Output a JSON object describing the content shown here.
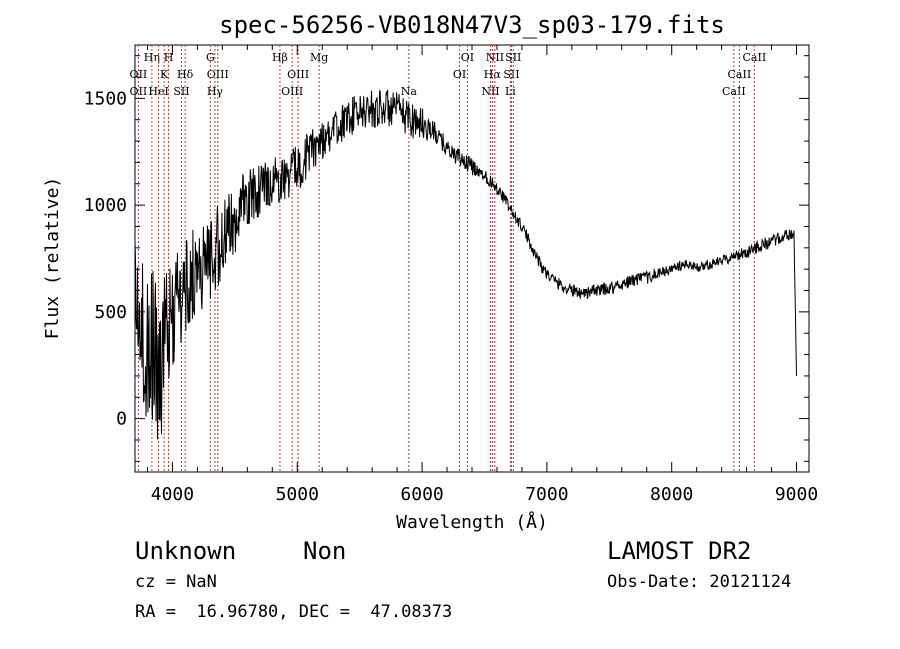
{
  "chart_data": {
    "type": "line",
    "title": "spec-56256-VB018N47V3_sp03-179.fits",
    "xlabel": "Wavelength (Å)",
    "ylabel": "Flux (relative)",
    "xlim": [
      3700,
      9100
    ],
    "ylim": [
      -250,
      1750
    ],
    "xticks": [
      4000,
      5000,
      6000,
      7000,
      8000,
      9000
    ],
    "yticks": [
      0,
      500,
      1000,
      1500
    ],
    "grid": false,
    "series": [
      {
        "x": [
          3700,
          3750,
          3800,
          3850,
          3900,
          3950,
          4000,
          4050,
          4100,
          4150,
          4200,
          4250,
          4300,
          4350,
          4400,
          4450,
          4500,
          4550,
          4600,
          4650,
          4700,
          4750,
          4800,
          4850,
          4900,
          4950,
          5000,
          5050,
          5100,
          5150,
          5200,
          5250,
          5300,
          5350,
          5400,
          5450,
          5500,
          5550,
          5600,
          5650,
          5700,
          5750,
          5800,
          5850,
          5900,
          5950,
          6000,
          6050,
          6100,
          6150,
          6200,
          6250,
          6300,
          6350,
          6400,
          6450,
          6500,
          6550,
          6600,
          6650,
          6700,
          6750,
          6800,
          6850,
          6900,
          6950,
          7000,
          7050,
          7100,
          7150,
          7200,
          7300,
          7400,
          7500,
          7600,
          7700,
          7800,
          7900,
          8000,
          8100,
          8200,
          8300,
          8400,
          8500,
          8600,
          8700,
          8800,
          8900,
          8950,
          8980,
          9000
        ],
        "values": [
          600,
          400,
          300,
          350,
          250,
          380,
          500,
          550,
          600,
          650,
          700,
          720,
          760,
          800,
          820,
          880,
          940,
          980,
          1020,
          1050,
          1080,
          1100,
          1110,
          1120,
          1130,
          1150,
          1180,
          1210,
          1250,
          1280,
          1310,
          1330,
          1350,
          1380,
          1400,
          1420,
          1430,
          1440,
          1450,
          1455,
          1460,
          1450,
          1440,
          1420,
          1410,
          1395,
          1380,
          1360,
          1340,
          1300,
          1270,
          1240,
          1220,
          1200,
          1180,
          1160,
          1140,
          1110,
          1080,
          1040,
          990,
          940,
          900,
          840,
          780,
          720,
          680,
          650,
          630,
          610,
          600,
          590,
          600,
          610,
          630,
          650,
          660,
          680,
          700,
          720,
          710,
          720,
          740,
          760,
          780,
          810,
          830,
          850,
          860,
          870,
          200
        ],
        "noise": [
          250,
          350,
          350,
          380,
          400,
          300,
          280,
          260,
          240,
          230,
          220,
          210,
          200,
          200,
          190,
          180,
          170,
          160,
          150,
          140,
          130,
          120,
          110,
          110,
          110,
          110,
          110,
          110,
          100,
          100,
          100,
          90,
          90,
          90,
          90,
          90,
          90,
          90,
          90,
          90,
          90,
          90,
          90,
          90,
          90,
          90,
          80,
          60,
          50,
          50,
          40,
          40,
          40,
          40,
          40,
          30,
          30,
          30,
          30,
          30,
          30,
          30,
          30,
          30,
          30,
          30,
          30,
          30,
          30,
          30,
          30,
          30,
          30,
          30,
          30,
          30,
          30,
          30,
          25,
          25,
          25,
          25,
          25,
          25,
          30,
          30,
          30,
          30,
          30,
          30,
          0
        ]
      }
    ],
    "line_marks": [
      {
        "w": 3727.3,
        "labels": [
          "OII",
          "OII"
        ],
        "rows": [
          2,
          3
        ]
      },
      {
        "w": 3835.4,
        "labels": [
          "Hη"
        ],
        "rows": [
          1
        ]
      },
      {
        "w": 3889.0,
        "labels": [
          "HeI"
        ],
        "rows": [
          3
        ]
      },
      {
        "w": 3933.7,
        "labels": [
          "K"
        ],
        "rows": [
          2
        ]
      },
      {
        "w": 3968.5,
        "labels": [
          "H"
        ],
        "rows": [
          1
        ]
      },
      {
        "w": 4072.0,
        "labels": [
          "SII"
        ],
        "rows": [
          3
        ]
      },
      {
        "w": 4101.7,
        "labels": [
          "Hδ"
        ],
        "rows": [
          2
        ]
      },
      {
        "w": 4304.4,
        "labels": [
          "G"
        ],
        "rows": [
          1
        ]
      },
      {
        "w": 4340.5,
        "labels": [
          "Hγ"
        ],
        "rows": [
          3
        ]
      },
      {
        "w": 4363.2,
        "labels": [
          "OIII"
        ],
        "rows": [
          2
        ]
      },
      {
        "w": 4861.3,
        "labels": [
          "Hβ"
        ],
        "rows": [
          1
        ]
      },
      {
        "w": 4959.0,
        "labels": [
          "OIII"
        ],
        "rows": [
          3
        ]
      },
      {
        "w": 5006.8,
        "labels": [
          "OIII"
        ],
        "rows": [
          2
        ]
      },
      {
        "w": 5175.0,
        "labels": [
          "Mg"
        ],
        "rows": [
          1
        ]
      },
      {
        "w": 5894.0,
        "labels": [
          "Na"
        ],
        "rows": [
          3
        ]
      },
      {
        "w": 6300.3,
        "labels": [
          "OI"
        ],
        "rows": [
          2
        ]
      },
      {
        "w": 6363.8,
        "labels": [
          "OI"
        ],
        "rows": [
          1
        ]
      },
      {
        "w": 6548.1,
        "labels": [
          "NII"
        ],
        "rows": [
          3
        ]
      },
      {
        "w": 6562.8,
        "labels": [
          "Hα"
        ],
        "rows": [
          2
        ]
      },
      {
        "w": 6583.5,
        "labels": [
          "NII"
        ],
        "rows": [
          1
        ]
      },
      {
        "w": 6707.8,
        "labels": [
          "Li"
        ],
        "rows": [
          3
        ]
      },
      {
        "w": 6716.4,
        "labels": [
          "SII"
        ],
        "rows": [
          2
        ]
      },
      {
        "w": 6730.8,
        "labels": [
          "SII"
        ],
        "rows": [
          1
        ]
      },
      {
        "w": 8498.0,
        "labels": [
          "CaII"
        ],
        "rows": [
          3
        ]
      },
      {
        "w": 8542.1,
        "labels": [
          "CaII"
        ],
        "rows": [
          2
        ]
      },
      {
        "w": 8662.1,
        "labels": [
          "CaII"
        ],
        "rows": [
          1
        ]
      }
    ],
    "line_color": "#b04040"
  },
  "info": {
    "classification": "Unknown",
    "subclass": "Non",
    "survey": "LAMOST DR2",
    "cz": "cz = NaN",
    "obs_date": "Obs-Date: 20121124",
    "coords": "RA =  16.96780, DEC =  47.08373"
  }
}
